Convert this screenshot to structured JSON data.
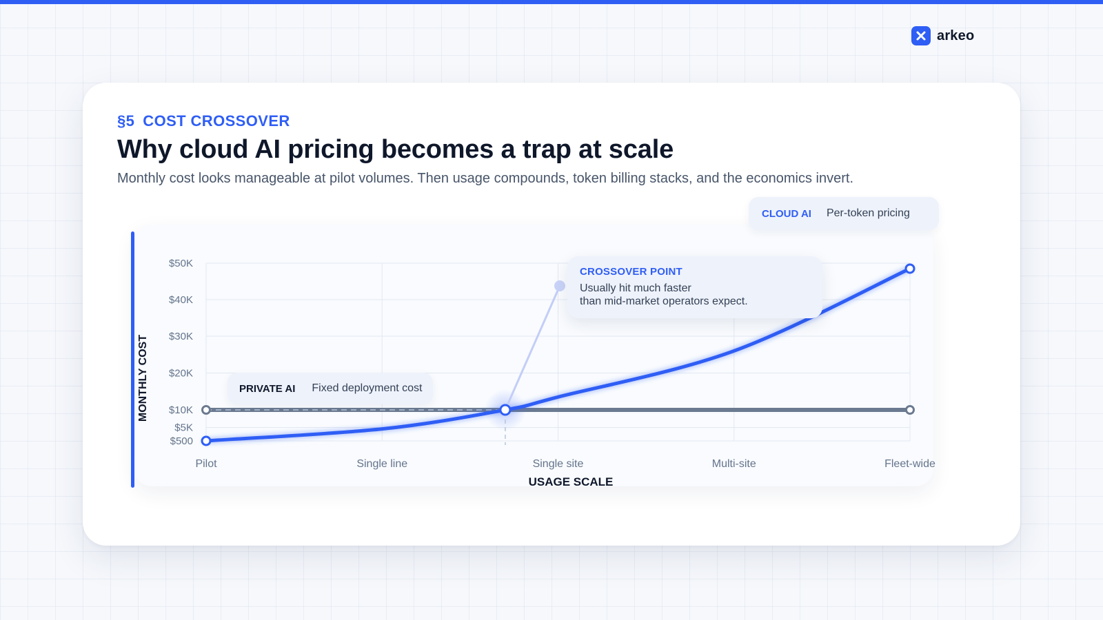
{
  "brand": {
    "name": "arkeo",
    "icon": "close-x-icon"
  },
  "header": {
    "section_number": "§5",
    "section_label": "COST CROSSOVER",
    "title": "Why cloud AI pricing becomes a trap at scale",
    "subtitle": "Monthly cost looks manageable at pilot volumes. Then usage compounds, token billing stacks, and the economics invert."
  },
  "legend": {
    "cloud": {
      "tag": "CLOUD AI",
      "desc": "Per-token pricing"
    },
    "private": {
      "tag": "PRIVATE AI",
      "desc": "Fixed deployment cost"
    }
  },
  "callout": {
    "title": "CROSSOVER POINT",
    "line1": "Usually hit much faster",
    "line2": "than mid-market operators expect."
  },
  "colors": {
    "accent": "#2f5ef5",
    "private_line": "#6b7a90",
    "callout_bg": "#eef2fb"
  },
  "chart_data": {
    "type": "line",
    "xlabel": "USAGE SCALE",
    "ylabel": "MONTHLY COST",
    "categories": [
      "Pilot",
      "Single line",
      "Single site",
      "Multi-site",
      "Fleet-wide"
    ],
    "y_ticks": [
      {
        "value": 500,
        "label": "$500"
      },
      {
        "value": 5000,
        "label": "$5K"
      },
      {
        "value": 10000,
        "label": "$10K"
      },
      {
        "value": 20000,
        "label": "$20K"
      },
      {
        "value": 30000,
        "label": "$30K"
      },
      {
        "value": 40000,
        "label": "$40K"
      },
      {
        "value": 50000,
        "label": "$50K"
      }
    ],
    "series": [
      {
        "name": "CLOUD AI",
        "points": [
          [
            0,
            500
          ],
          [
            1,
            4500
          ],
          [
            1.7,
            10000
          ],
          [
            2,
            13500
          ],
          [
            3,
            26000
          ],
          [
            4,
            48500
          ]
        ]
      },
      {
        "name": "PRIVATE AI",
        "points": [
          [
            0,
            10000
          ],
          [
            1,
            10000
          ],
          [
            2,
            10000
          ],
          [
            3,
            10000
          ],
          [
            4,
            10000
          ]
        ]
      }
    ],
    "crossover": {
      "x": 1.7,
      "y": 10000
    },
    "grid": true
  }
}
